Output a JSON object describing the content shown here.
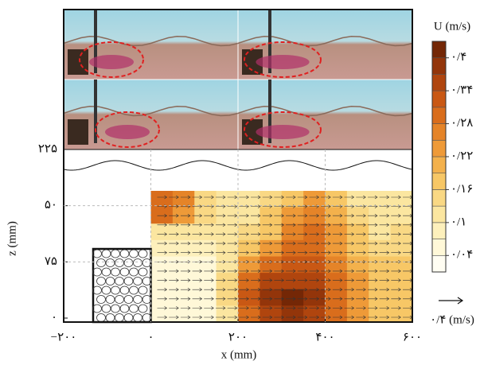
{
  "chart_data": {
    "type": "contour",
    "xlabel": "x (mm)",
    "ylabel": "z (mm)",
    "xlim": [
      -200,
      600
    ],
    "xticks": [
      {
        "value": -200,
        "label": "−۲۰۰"
      },
      {
        "value": 0,
        "label": "۰"
      },
      {
        "value": 200,
        "label": "۲۰۰"
      },
      {
        "value": 400,
        "label": "۴۰۰"
      },
      {
        "value": 600,
        "label": "۶۰۰"
      }
    ],
    "y_categories": [
      "۲۲۵",
      "۵۰",
      "۷۵",
      "۰"
    ],
    "grid": true,
    "field_xrange": [
      0,
      600
    ],
    "field": [
      [
        0.3,
        0.25,
        0.15,
        0.1,
        0.12,
        0.15,
        0.18,
        0.22,
        0.18,
        0.12,
        0.1,
        0.12
      ],
      [
        0.28,
        0.22,
        0.14,
        0.1,
        0.12,
        0.16,
        0.22,
        0.25,
        0.2,
        0.14,
        0.1,
        0.12
      ],
      [
        0.12,
        0.12,
        0.1,
        0.1,
        0.14,
        0.18,
        0.25,
        0.28,
        0.22,
        0.16,
        0.12,
        0.14
      ],
      [
        0.08,
        0.08,
        0.08,
        0.1,
        0.18,
        0.24,
        0.3,
        0.3,
        0.24,
        0.18,
        0.14,
        0.14
      ],
      [
        0.06,
        0.06,
        0.06,
        0.12,
        0.24,
        0.3,
        0.32,
        0.32,
        0.26,
        0.2,
        0.16,
        0.16
      ],
      [
        0.04,
        0.05,
        0.06,
        0.14,
        0.3,
        0.34,
        0.36,
        0.34,
        0.28,
        0.22,
        0.18,
        0.16
      ],
      [
        0.04,
        0.05,
        0.06,
        0.14,
        0.32,
        0.38,
        0.4,
        0.38,
        0.3,
        0.24,
        0.18,
        0.16
      ],
      [
        0.04,
        0.05,
        0.06,
        0.12,
        0.3,
        0.36,
        0.38,
        0.36,
        0.28,
        0.22,
        0.18,
        0.16
      ]
    ],
    "colorbar": {
      "title": "U (m/s)",
      "clim": [
        0.01,
        0.43
      ],
      "ticks": [
        {
          "value": 0.4,
          "label": "۰/۴"
        },
        {
          "value": 0.34,
          "label": "۰/۳۴"
        },
        {
          "value": 0.28,
          "label": "۰/۲۸"
        },
        {
          "value": 0.22,
          "label": "۰/۲۲"
        },
        {
          "value": 0.16,
          "label": "۰/۱۶"
        },
        {
          "value": 0.1,
          "label": "۰/۱"
        },
        {
          "value": 0.04,
          "label": "۰/۰۴"
        }
      ],
      "colors": [
        "#fffdf2",
        "#fff8d8",
        "#fdf0bc",
        "#fbe6a0",
        "#f9d884",
        "#f7c766",
        "#f3b14c",
        "#ee9a38",
        "#e58428",
        "#d96d1c",
        "#c95814",
        "#b0450e",
        "#93350a",
        "#742706"
      ]
    },
    "vector_key": {
      "label": "۰/۴ (m/s)",
      "value": 0.4
    }
  }
}
